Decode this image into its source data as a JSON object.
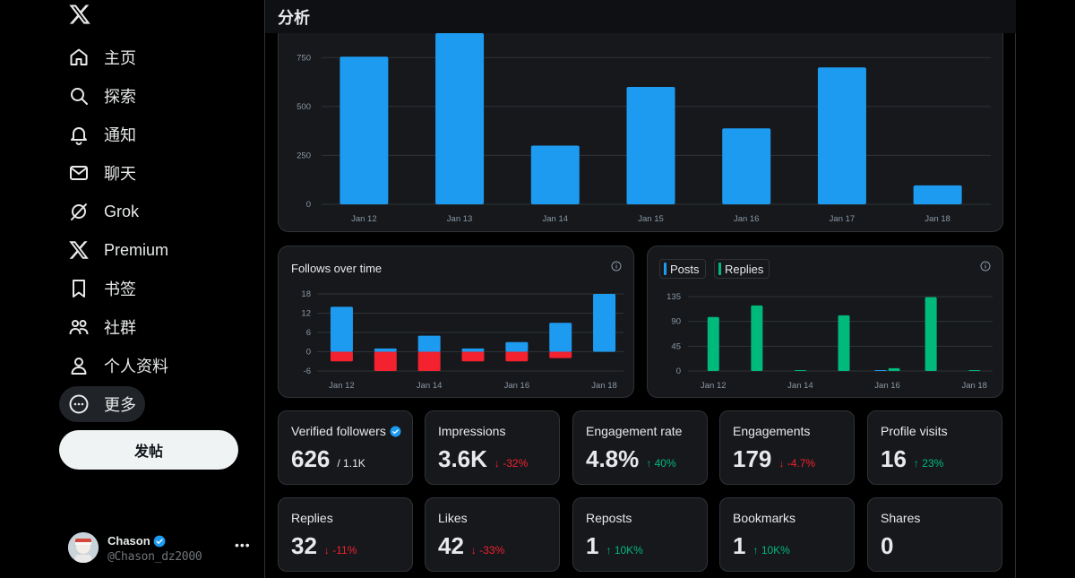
{
  "sidebar": {
    "items": [
      {
        "label": "主页",
        "icon": "home-icon"
      },
      {
        "label": "探索",
        "icon": "search-icon"
      },
      {
        "label": "通知",
        "icon": "bell-icon"
      },
      {
        "label": "聊天",
        "icon": "mail-icon"
      },
      {
        "label": "Grok",
        "icon": "grok-icon"
      },
      {
        "label": "Premium",
        "icon": "x-logo-icon"
      },
      {
        "label": "书签",
        "icon": "bookmark-icon"
      },
      {
        "label": "社群",
        "icon": "people-icon"
      },
      {
        "label": "个人资料",
        "icon": "person-icon"
      },
      {
        "label": "更多",
        "icon": "more-circle-icon"
      }
    ],
    "post_button": "发帖",
    "profile": {
      "name": "Chason",
      "handle": "@Chason_dz2000"
    }
  },
  "header": {
    "title": "分析"
  },
  "colors": {
    "blue": "#1d9bf0",
    "red": "#f4212e",
    "green": "#00ba7c"
  },
  "chart_data": [
    {
      "type": "bar",
      "categories": [
        "Jan 12",
        "Jan 13",
        "Jan 14",
        "Jan 15",
        "Jan 16",
        "Jan 17",
        "Jan 18"
      ],
      "values": [
        755,
        875,
        300,
        600,
        388,
        700,
        97
      ],
      "yticks": [
        0,
        250,
        500,
        750
      ],
      "ylim": [
        0,
        875
      ]
    },
    {
      "type": "bar",
      "title": "Follows over time",
      "categories": [
        "Jan 12",
        "Jan 13",
        "Jan 14",
        "Jan 15",
        "Jan 16",
        "Jan 17",
        "Jan 18"
      ],
      "xticks": [
        "Jan 12",
        "Jan 14",
        "Jan 16",
        "Jan 18"
      ],
      "series": [
        {
          "values": [
            14,
            1,
            5,
            1,
            3,
            9,
            18
          ]
        },
        {
          "values": [
            -3,
            -6,
            -6,
            -3,
            -3,
            -2,
            0
          ]
        }
      ],
      "yticks": [
        -6,
        0,
        6,
        12,
        18
      ],
      "ylim": [
        -6,
        18
      ]
    },
    {
      "type": "bar",
      "categories": [
        "Jan 12",
        "Jan 13",
        "Jan 14",
        "Jan 15",
        "Jan 16",
        "Jan 17",
        "Jan 18"
      ],
      "xticks": [
        "Jan 12",
        "Jan 14",
        "Jan 16",
        "Jan 18"
      ],
      "series": [
        {
          "name": "Posts",
          "values": [
            0,
            0,
            0,
            0,
            1,
            0,
            0
          ]
        },
        {
          "name": "Replies",
          "values": [
            98,
            119,
            1,
            101,
            5,
            134,
            1
          ]
        }
      ],
      "yticks": [
        0,
        45,
        90,
        135
      ],
      "ylim": [
        0,
        135
      ]
    }
  ],
  "metrics": [
    {
      "label": "Verified followers",
      "value": "626",
      "sub": "/ 1.1K",
      "delta": "",
      "dir": "",
      "verified": true
    },
    {
      "label": "Impressions",
      "value": "3.6K",
      "sub": "",
      "delta": "-32%",
      "dir": "down"
    },
    {
      "label": "Engagement rate",
      "value": "4.8%",
      "sub": "",
      "delta": "40%",
      "dir": "up"
    },
    {
      "label": "Engagements",
      "value": "179",
      "sub": "",
      "delta": "-4.7%",
      "dir": "down"
    },
    {
      "label": "Profile visits",
      "value": "16",
      "sub": "",
      "delta": "23%",
      "dir": "up"
    },
    {
      "label": "Replies",
      "value": "32",
      "sub": "",
      "delta": "-11%",
      "dir": "down"
    },
    {
      "label": "Likes",
      "value": "42",
      "sub": "",
      "delta": "-33%",
      "dir": "down"
    },
    {
      "label": "Reposts",
      "value": "1",
      "sub": "",
      "delta": "10K%",
      "dir": "up"
    },
    {
      "label": "Bookmarks",
      "value": "1",
      "sub": "",
      "delta": "10K%",
      "dir": "up"
    },
    {
      "label": "Shares",
      "value": "0",
      "sub": "",
      "delta": "",
      "dir": ""
    }
  ]
}
